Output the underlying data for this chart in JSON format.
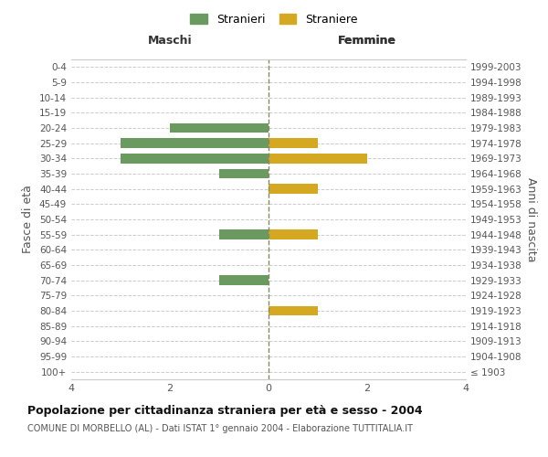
{
  "age_groups": [
    "100+",
    "95-99",
    "90-94",
    "85-89",
    "80-84",
    "75-79",
    "70-74",
    "65-69",
    "60-64",
    "55-59",
    "50-54",
    "45-49",
    "40-44",
    "35-39",
    "30-34",
    "25-29",
    "20-24",
    "15-19",
    "10-14",
    "5-9",
    "0-4"
  ],
  "birth_years": [
    "≤ 1903",
    "1904-1908",
    "1909-1913",
    "1914-1918",
    "1919-1923",
    "1924-1928",
    "1929-1933",
    "1934-1938",
    "1939-1943",
    "1944-1948",
    "1949-1953",
    "1954-1958",
    "1959-1963",
    "1964-1968",
    "1969-1973",
    "1974-1978",
    "1979-1983",
    "1984-1988",
    "1989-1993",
    "1994-1998",
    "1999-2003"
  ],
  "males": [
    0,
    0,
    0,
    0,
    0,
    0,
    -1,
    0,
    0,
    -1,
    0,
    0,
    0,
    -1,
    -3,
    -3,
    -2,
    0,
    0,
    0,
    0
  ],
  "females": [
    0,
    0,
    0,
    0,
    1,
    0,
    0,
    0,
    0,
    1,
    0,
    0,
    1,
    0,
    2,
    1,
    0,
    0,
    0,
    0,
    0
  ],
  "color_male": "#6a9a5f",
  "color_female": "#d4a820",
  "color_center_line": "#888866",
  "color_grid": "#cccccc",
  "xlim": 4,
  "title": "Popolazione per cittadinanza straniera per età e sesso - 2004",
  "subtitle": "COMUNE DI MORBELLO (AL) - Dati ISTAT 1° gennaio 2004 - Elaborazione TUTTITALIA.IT",
  "ylabel_left": "Fasce di età",
  "ylabel_right": "Anni di nascita",
  "label_maschi": "Maschi",
  "label_femmine": "Femmine",
  "legend_stranieri": "Stranieri",
  "legend_straniere": "Straniere",
  "bg_color": "#ffffff",
  "tick_color": "#888888",
  "spine_color": "#cccccc"
}
